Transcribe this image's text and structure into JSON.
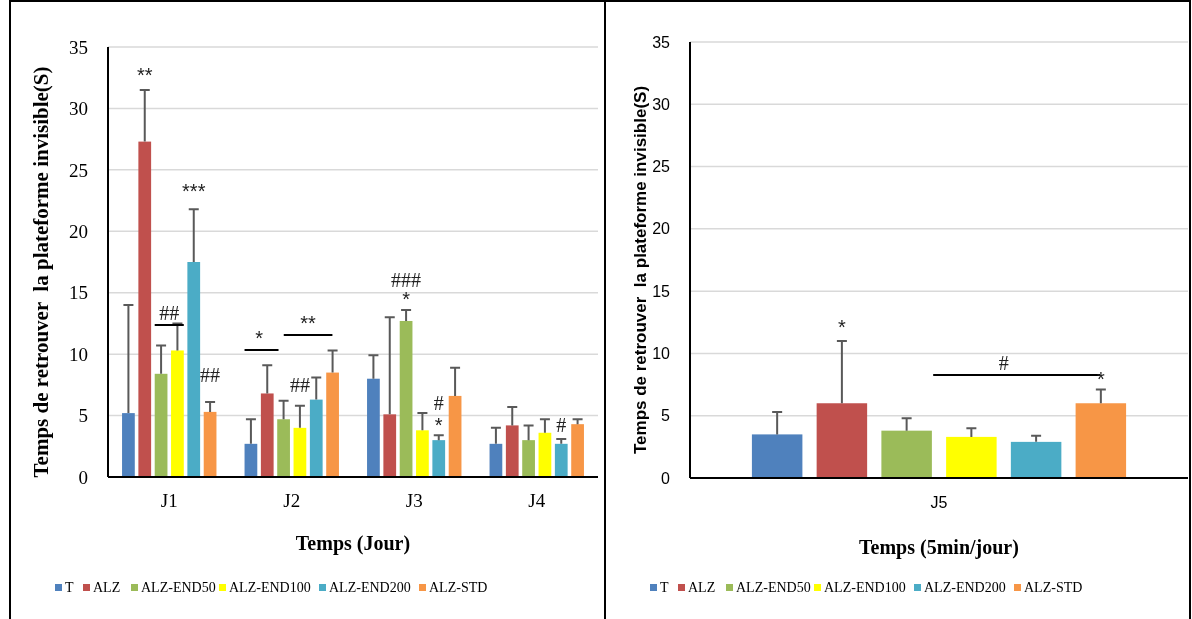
{
  "chart_data": [
    {
      "type": "bar",
      "xlabel": "Temps (Jour)",
      "ylabel": "Temps de retrouver  la plateforme invisible(S)",
      "categories": [
        "J1",
        "J2",
        "J3",
        "J4"
      ],
      "ylim": [
        0,
        35
      ],
      "yticks": [
        0,
        5,
        10,
        15,
        20,
        25,
        30,
        35
      ],
      "grid": "y",
      "legend": "bottom",
      "series": [
        {
          "name": "T",
          "color": "#4f81bd",
          "values": [
            5.2,
            2.7,
            8.0,
            2.7
          ],
          "errors": [
            [
              5.2,
              14.0
            ],
            [
              2.7,
              4.7
            ],
            [
              8.0,
              9.9
            ],
            [
              2.7,
              4.0
            ]
          ]
        },
        {
          "name": "ALZ",
          "color": "#c0504d",
          "values": [
            27.3,
            6.8,
            5.1,
            4.2
          ],
          "errors": [
            [
              27.3,
              31.5
            ],
            [
              6.8,
              9.1
            ],
            [
              5.1,
              13.0
            ],
            [
              4.2,
              5.7
            ]
          ]
        },
        {
          "name": "ALZ-END50",
          "color": "#9bbb59",
          "values": [
            8.4,
            4.7,
            12.7,
            3.0
          ],
          "errors": [
            [
              8.4,
              10.7
            ],
            [
              4.7,
              6.2
            ],
            [
              12.7,
              13.6
            ],
            [
              3.0,
              4.2
            ]
          ]
        },
        {
          "name": "ALZ-END100",
          "color": "#ffff00",
          "values": [
            10.3,
            4.0,
            3.8,
            3.6
          ],
          "errors": [
            [
              10.3,
              12.5
            ],
            [
              4.0,
              5.8
            ],
            [
              3.8,
              5.2
            ],
            [
              3.6,
              4.7
            ]
          ]
        },
        {
          "name": "ALZ-END200",
          "color": "#4bacc6",
          "values": [
            17.5,
            6.3,
            3.0,
            2.7
          ],
          "errors": [
            [
              17.5,
              21.8
            ],
            [
              6.3,
              8.1
            ],
            [
              3.0,
              3.4
            ],
            [
              2.7,
              3.1
            ]
          ]
        },
        {
          "name": "ALZ-STD",
          "color": "#f79646",
          "values": [
            5.3,
            8.5,
            6.6,
            4.3
          ],
          "errors": [
            [
              5.3,
              6.1
            ],
            [
              8.5,
              10.3
            ],
            [
              6.6,
              8.9
            ],
            [
              4.3,
              4.7
            ]
          ]
        }
      ],
      "annotations": [
        "**",
        "***",
        "##",
        "##",
        "*",
        "**",
        "##",
        "###",
        "*",
        "#",
        "*",
        "#"
      ]
    },
    {
      "type": "bar",
      "xlabel": "Temps (5min/jour)",
      "ylabel": "Temps de retrouver  la plateforme invisible(S)",
      "categories": [
        "J5"
      ],
      "ylim": [
        0,
        35
      ],
      "yticks": [
        0,
        5,
        10,
        15,
        20,
        25,
        30,
        35
      ],
      "grid": "y",
      "legend": "bottom",
      "series": [
        {
          "name": "T",
          "color": "#4f81bd",
          "values": [
            3.5
          ],
          "errors": [
            [
              3.5,
              5.3
            ]
          ]
        },
        {
          "name": "ALZ",
          "color": "#c0504d",
          "values": [
            6.0
          ],
          "errors": [
            [
              6.0,
              11.0
            ]
          ]
        },
        {
          "name": "ALZ-END50",
          "color": "#9bbb59",
          "values": [
            3.8
          ],
          "errors": [
            [
              3.8,
              4.8
            ]
          ]
        },
        {
          "name": "ALZ-END100",
          "color": "#ffff00",
          "values": [
            3.3
          ],
          "errors": [
            [
              3.3,
              4.0
            ]
          ]
        },
        {
          "name": "ALZ-END200",
          "color": "#4bacc6",
          "values": [
            2.9
          ],
          "errors": [
            [
              2.9,
              3.4
            ]
          ]
        },
        {
          "name": "ALZ-STD",
          "color": "#f79646",
          "values": [
            6.0
          ],
          "errors": [
            [
              6.0,
              7.1
            ]
          ]
        }
      ],
      "annotations": [
        "*",
        "#",
        "*"
      ]
    }
  ]
}
